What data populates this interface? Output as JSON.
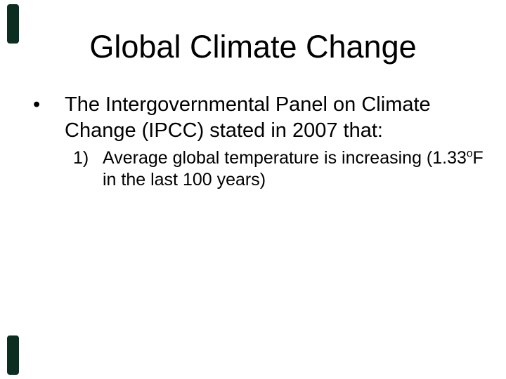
{
  "slide": {
    "title": "Global Climate Change",
    "bullet": {
      "marker": "•",
      "lines": [
        "The Intergovernmental Panel on Climate",
        "Change (IPCC) stated in 2007 that:"
      ]
    },
    "sub_item": {
      "marker": "1)",
      "line1_pre": "Average global temperature is increasing (1.33",
      "superscript": "o",
      "line1_post": "F",
      "line2": "in the last 100 years)"
    },
    "colors": {
      "background": "#ffffff",
      "text": "#000000",
      "accent_bar": "#0c2e21"
    }
  }
}
